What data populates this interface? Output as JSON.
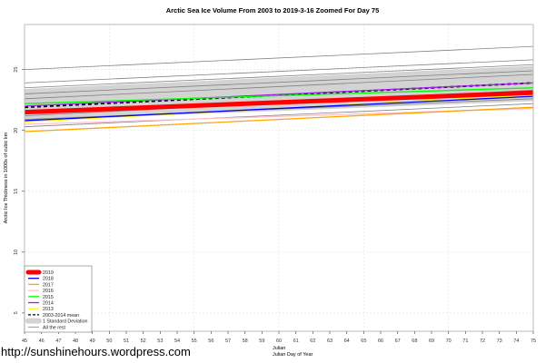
{
  "chart_data": {
    "type": "line",
    "title": "Arctic Sea Ice Volume From 2003 to 2019-3-16 Zoomed For Day 75",
    "xlabel": "Julian",
    "xlabel2": "Julian Day of Year",
    "ylabel": "Arctic Ice Thickness in 1000s of cubic km",
    "xlim": [
      45,
      75
    ],
    "ylim": [
      3.5,
      28.7
    ],
    "x_ticks": [
      45,
      46,
      47,
      48,
      49,
      50,
      51,
      52,
      53,
      54,
      55,
      56,
      57,
      58,
      59,
      60,
      61,
      62,
      63,
      64,
      65,
      66,
      67,
      68,
      69,
      70,
      71,
      72,
      73,
      74,
      75
    ],
    "y_ticks": [
      5,
      10,
      15,
      20,
      25
    ],
    "grid": true,
    "legend_position": "bottom-left",
    "x": [
      45,
      75
    ],
    "sd_band": {
      "name": "1 Standard Deviation",
      "color": "#d3d3d3",
      "lower": [
        20.8,
        22.4
      ],
      "upper": [
        23.4,
        25.3
      ]
    },
    "rest": {
      "name": "All the rest",
      "color": "#808080",
      "series": [
        [
          25.0,
          26.9
        ],
        [
          23.9,
          25.8
        ],
        [
          23.5,
          25.4
        ],
        [
          23.0,
          24.9
        ],
        [
          22.6,
          24.6
        ],
        [
          21.2,
          23.3
        ],
        [
          20.9,
          22.6
        ],
        [
          20.3,
          22.2
        ]
      ]
    },
    "series": [
      {
        "name": "2003-2014 mean",
        "color": "#000000",
        "values": [
          21.9,
          23.9
        ],
        "dash": true
      },
      {
        "name": "2013",
        "color": "#ffff00",
        "values": [
          20.7,
          22.9
        ]
      },
      {
        "name": "2014",
        "color": "#a020f0",
        "values": [
          22.0,
          23.9
        ]
      },
      {
        "name": "2015",
        "color": "#00ff00",
        "values": [
          22.2,
          23.5
        ]
      },
      {
        "name": "2016",
        "color": "#ffc0cb",
        "values": [
          20.5,
          21.8
        ]
      },
      {
        "name": "2017",
        "color": "#ffa500",
        "values": [
          19.9,
          21.9
        ]
      },
      {
        "name": "2018",
        "color": "#0000ff",
        "values": [
          20.8,
          22.8
        ]
      },
      {
        "name": "2019",
        "color": "#ff0000",
        "values": [
          21.5,
          23.1
        ],
        "thick": true
      }
    ],
    "legend": [
      "2019",
      "2018",
      "2017",
      "2016",
      "2015",
      "2014",
      "2013",
      "2003-2014 mean",
      "1 Standard Deviation",
      "All the rest"
    ]
  },
  "footer": "http://sunshinehours.wordpress.com"
}
